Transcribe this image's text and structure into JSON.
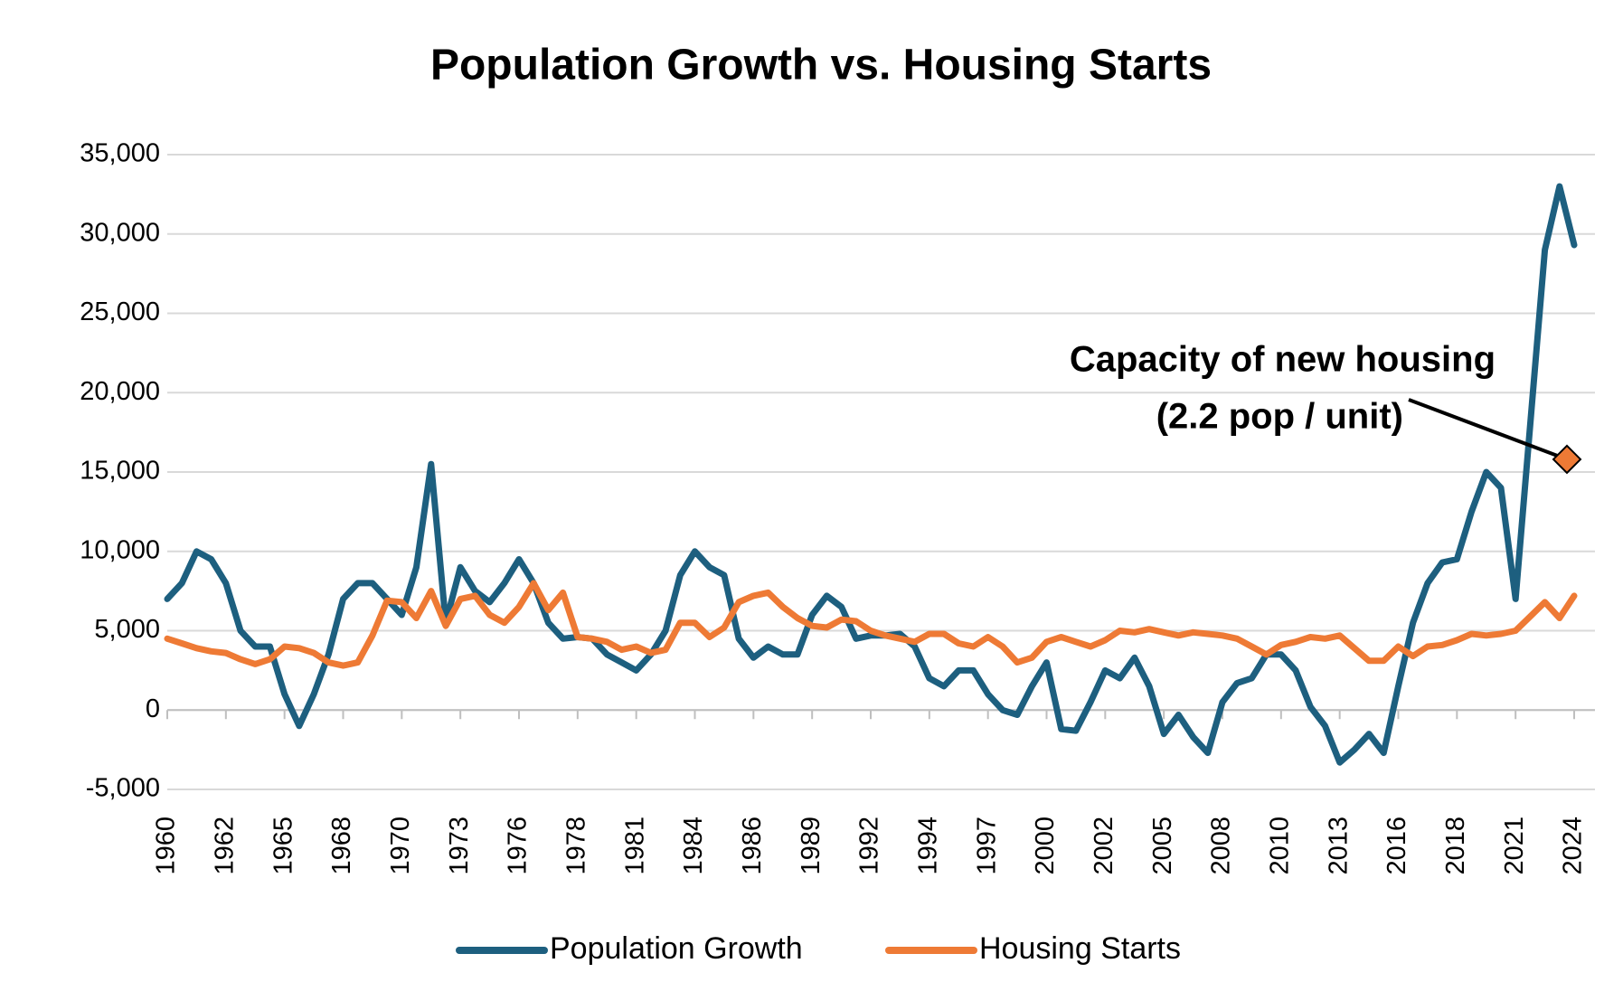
{
  "chart_data": {
    "type": "line",
    "title": "Population Growth vs. Housing Starts",
    "categories": [
      "1960",
      null,
      null,
      null,
      "1962",
      null,
      null,
      null,
      "1965",
      null,
      null,
      null,
      "1968",
      null,
      null,
      null,
      "1970",
      null,
      null,
      null,
      "1973",
      null,
      null,
      null,
      "1976",
      null,
      null,
      null,
      "1978",
      null,
      null,
      null,
      "1981",
      null,
      null,
      null,
      "1984",
      null,
      null,
      null,
      "1986",
      null,
      null,
      null,
      "1989",
      null,
      null,
      null,
      "1992",
      null,
      null,
      null,
      "1994",
      null,
      null,
      null,
      "1997",
      null,
      null,
      null,
      "2000",
      null,
      null,
      null,
      "2002",
      null,
      null,
      null,
      "2005",
      null,
      null,
      null,
      "2008",
      null,
      null,
      null,
      "2010",
      null,
      null,
      null,
      "2013",
      null,
      null,
      null,
      "2016",
      null,
      null,
      null,
      "2018",
      null,
      null,
      null,
      "2021",
      null,
      null,
      null,
      "2024"
    ],
    "series": [
      {
        "name": "Population Growth",
        "color": "#1d5f7f",
        "values": [
          7000,
          8000,
          10000,
          9500,
          8000,
          5000,
          4000,
          4000,
          1000,
          -1000,
          1000,
          3500,
          7000,
          8000,
          8000,
          7000,
          6000,
          9000,
          15500,
          5500,
          9000,
          7500,
          6800,
          8000,
          9500,
          8000,
          5500,
          4500,
          4600,
          4500,
          3500,
          3000,
          2500,
          3500,
          5000,
          8500,
          10000,
          9000,
          8500,
          4500,
          3300,
          4000,
          3500,
          3500,
          6000,
          7200,
          6500,
          4500,
          4700,
          4700,
          4800,
          4000,
          2000,
          1500,
          2500,
          2500,
          1000,
          0,
          -300,
          1500,
          3000,
          -1200,
          -1300,
          500,
          2500,
          2000,
          3300,
          1500,
          -1500,
          -300,
          -1700,
          -2700,
          500,
          1700,
          2000,
          3500,
          3500,
          2500,
          200,
          -1000,
          -3300,
          -2500,
          -1500,
          -2700,
          1500,
          5500,
          8000,
          9300,
          9500,
          12500,
          15000,
          14000,
          7000,
          18000,
          29000,
          33000,
          29300
        ]
      },
      {
        "name": "Housing Starts",
        "color": "#ee7a35",
        "values": [
          4500,
          4200,
          3900,
          3700,
          3600,
          3200,
          2900,
          3200,
          4000,
          3900,
          3600,
          3000,
          2800,
          3000,
          4700,
          6900,
          6800,
          5800,
          7500,
          5300,
          7000,
          7200,
          6000,
          5500,
          6500,
          8000,
          6300,
          7400,
          4600,
          4500,
          4300,
          3800,
          4000,
          3600,
          3800,
          5500,
          5500,
          4600,
          5200,
          6800,
          7200,
          7400,
          6500,
          5800,
          5300,
          5200,
          5700,
          5600,
          5000,
          4700,
          4500,
          4300,
          4800,
          4800,
          4200,
          4000,
          4600,
          4000,
          3000,
          3300,
          4300,
          4600,
          4300,
          4000,
          4400,
          5000,
          4900,
          5100,
          4900,
          4700,
          4900,
          4800,
          4700,
          4500,
          4000,
          3500,
          4100,
          4300,
          4600,
          4500,
          4700,
          3900,
          3100,
          3100,
          4000,
          3400,
          4000,
          4100,
          4400,
          4800,
          4700,
          4800,
          5000,
          5900,
          6800,
          5800,
          7200
        ]
      }
    ],
    "marker": {
      "value": 15800,
      "color": "#ee7a35"
    },
    "annotation": [
      "Capacity of new housing",
      "(2.2 pop / unit)"
    ],
    "ylim": [
      -5000,
      35000
    ],
    "yticks": [
      {
        "value": -5000,
        "label": "-5,000"
      },
      0,
      {
        "value": 5000,
        "label": "5,000"
      },
      {
        "value": 10000,
        "label": "10,000"
      },
      {
        "value": 15000,
        "label": "15,000"
      },
      {
        "value": 20000,
        "label": "20,000"
      },
      {
        "value": 25000,
        "label": "25,000"
      },
      {
        "value": 30000,
        "label": "30,000"
      },
      {
        "value": 35000,
        "label": "35,000"
      }
    ],
    "grid": true,
    "legend": "bottom"
  }
}
